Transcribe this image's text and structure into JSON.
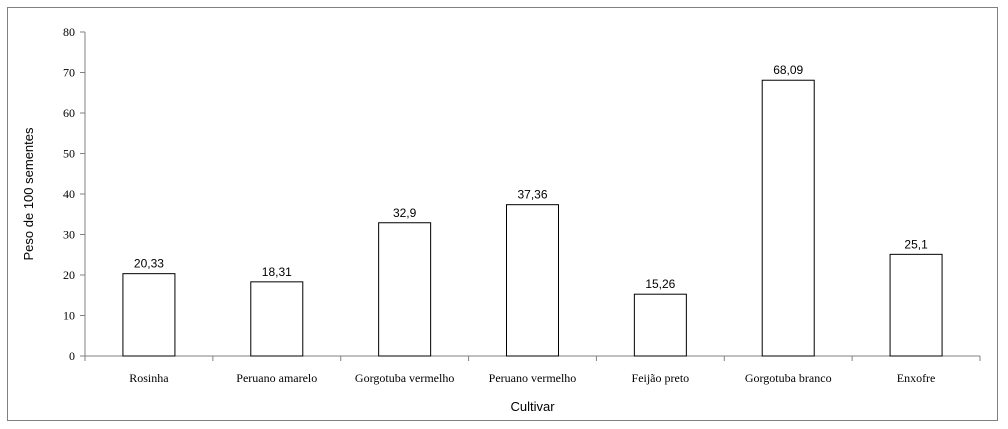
{
  "chart_data": {
    "type": "bar",
    "xlabel": "Cultivar",
    "ylabel": "Peso de 100 sementes",
    "ylim": [
      0,
      80
    ],
    "yticks": [
      0,
      10,
      20,
      30,
      40,
      50,
      60,
      70,
      80
    ],
    "grid": false,
    "categories": [
      "Rosinha",
      "Peruano amarelo",
      "Gorgotuba vermelho",
      "Peruano vermelho",
      "Feijão preto",
      "Gorgotuba branco",
      "Enxofre"
    ],
    "values": [
      20.33,
      18.31,
      32.9,
      37.36,
      15.26,
      68.09,
      25.1
    ],
    "data_labels": [
      "20,33",
      "18,31",
      "32,9",
      "37,36",
      "15,26",
      "68,09",
      "25,1"
    ],
    "colors": {
      "bar_fill": "#ffffff",
      "bar_stroke": "#000000",
      "axis": "#808080",
      "frame": "#808080"
    }
  }
}
